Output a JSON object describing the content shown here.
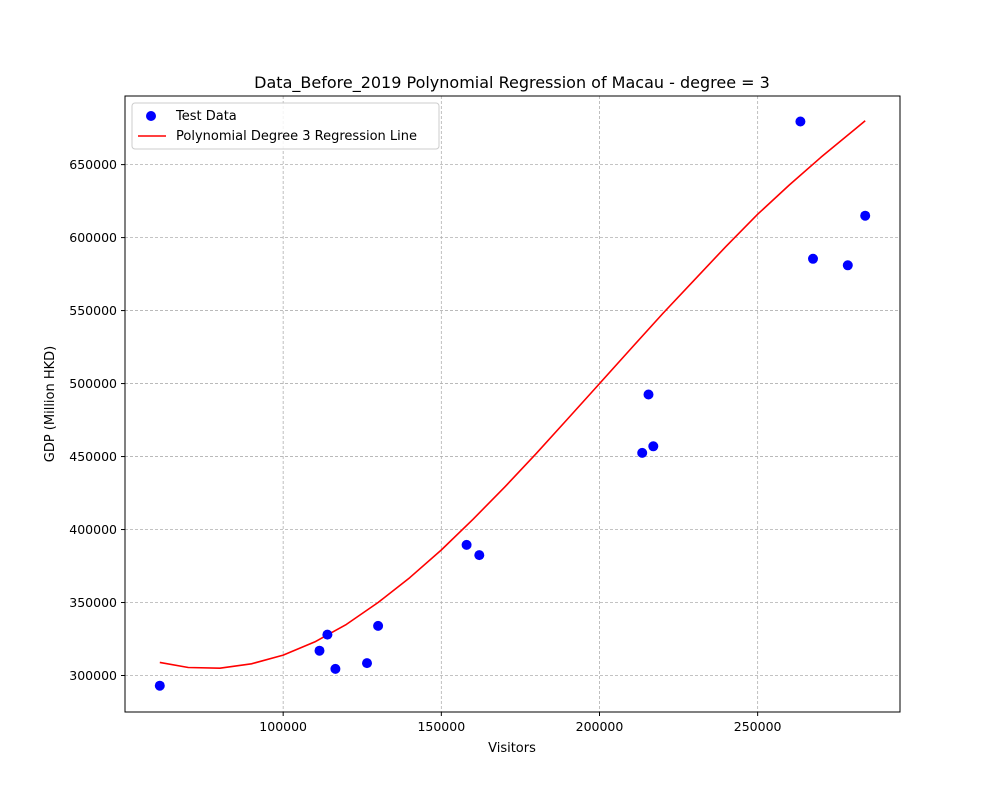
{
  "chart_data": {
    "type": "scatter",
    "title": "Data_Before_2019 Polynomial Regression of Macau - degree = 3",
    "xlabel": "Visitors",
    "ylabel": "GDP (Million HKD)",
    "xlim": [
      50000,
      295000
    ],
    "ylim": [
      275000,
      697000
    ],
    "x_ticks": [
      100000,
      150000,
      200000,
      250000
    ],
    "y_ticks": [
      300000,
      350000,
      400000,
      450000,
      500000,
      550000,
      600000,
      650000
    ],
    "grid": true,
    "legend_position": "top-left",
    "series": [
      {
        "name": "Test Data",
        "kind": "scatter",
        "color": "#0000ff",
        "points": [
          [
            61000,
            293000
          ],
          [
            111500,
            317000
          ],
          [
            114000,
            328000
          ],
          [
            116500,
            304500
          ],
          [
            126500,
            308500
          ],
          [
            130000,
            334000
          ],
          [
            158000,
            389500
          ],
          [
            162000,
            382500
          ],
          [
            213500,
            452500
          ],
          [
            215500,
            492500
          ],
          [
            217000,
            457000
          ],
          [
            263500,
            679500
          ],
          [
            267500,
            585500
          ],
          [
            278500,
            581000
          ],
          [
            284000,
            615000
          ]
        ]
      },
      {
        "name": "Polynomial Degree 3 Regression Line",
        "kind": "line",
        "color": "#ff0000",
        "points": [
          [
            61000,
            309000
          ],
          [
            70000,
            305500
          ],
          [
            80000,
            305000
          ],
          [
            90000,
            308000
          ],
          [
            100000,
            314000
          ],
          [
            110000,
            323000
          ],
          [
            120000,
            335000
          ],
          [
            130000,
            350000
          ],
          [
            140000,
            367000
          ],
          [
            150000,
            386000
          ],
          [
            160000,
            407000
          ],
          [
            170000,
            429000
          ],
          [
            180000,
            452000
          ],
          [
            190000,
            476000
          ],
          [
            200000,
            500000
          ],
          [
            210000,
            524000
          ],
          [
            220000,
            548000
          ],
          [
            230000,
            571000
          ],
          [
            240000,
            594000
          ],
          [
            250000,
            616000
          ],
          [
            260000,
            636000
          ],
          [
            270000,
            655000
          ],
          [
            284000,
            680000
          ]
        ]
      }
    ]
  }
}
